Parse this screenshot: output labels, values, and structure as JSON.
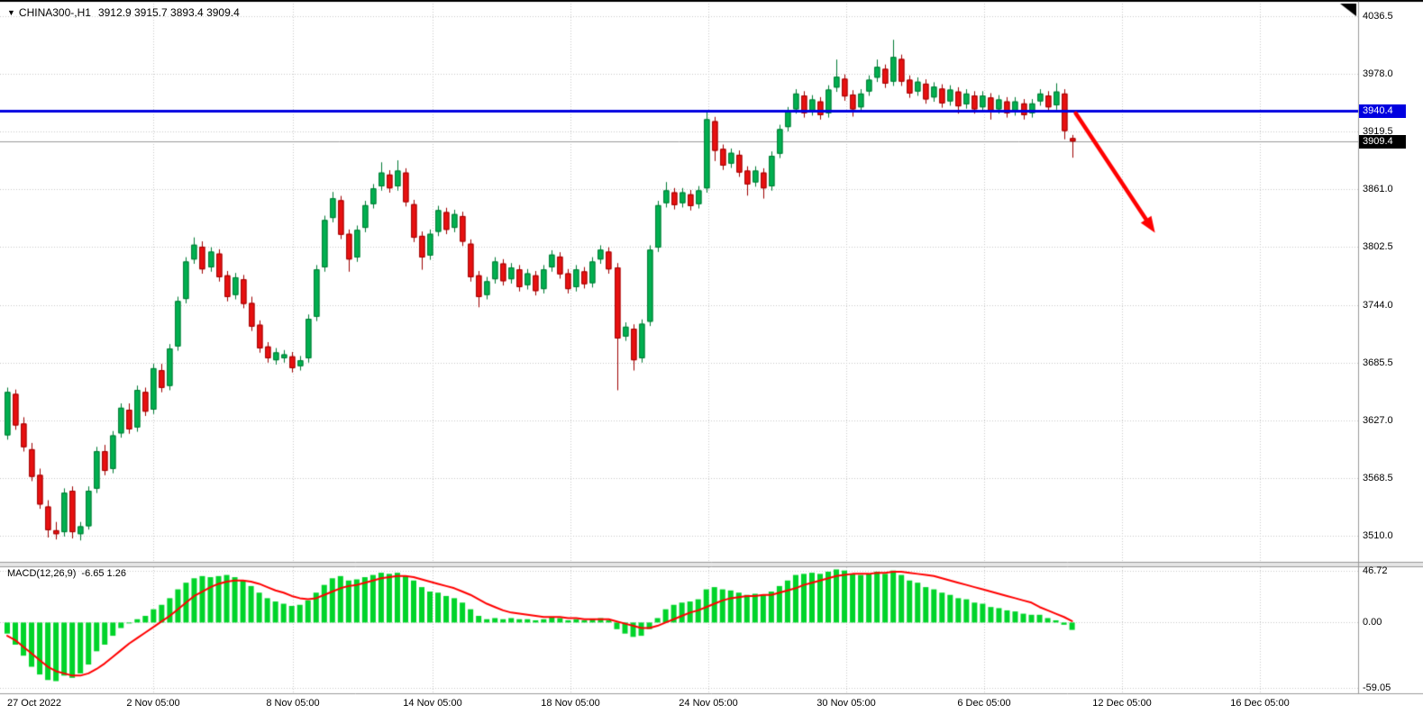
{
  "icons": {
    "collapse": "▼"
  },
  "colors": {
    "up": "#00B050",
    "up_stroke": "#007A33",
    "down": "#E81010",
    "down_stroke": "#9E0000",
    "hist": "#00D42A",
    "signal": "#FF0000",
    "blue_line": "#0000E0",
    "grid": "#C9C9C9",
    "last_price_line": "#9A9A9A",
    "badge_blue_bg": "#0000E0",
    "badge_black_bg": "#000000",
    "arrow": "#FF0000"
  },
  "chart_data": [
    {
      "type": "candlestick",
      "title": "CHINA300-,H1",
      "ohlc_text": "3912.9 3915.7 3893.4 3909.4",
      "ohlc_readout": {
        "open": 3912.9,
        "high": 3915.7,
        "low": 3893.4,
        "close": 3909.4
      },
      "ylim": [
        3484,
        4049
      ],
      "grid": "dotted",
      "price_gridlines": [
        4036.5,
        3978.0,
        3919.5,
        3861.0,
        3802.5,
        3744.0,
        3685.5,
        3627.0,
        3568.5,
        3510.0
      ],
      "price_tick_labels": [
        "4036.5",
        "3978.0",
        "3919.5",
        "3861.0",
        "3802.5",
        "3744.0",
        "3685.5",
        "3627.0",
        "3568.5",
        "3510.0"
      ],
      "time_tick_labels": [
        "27 Oct 2022",
        "2 Nov 05:00",
        "8 Nov 05:00",
        "14 Nov 05:00",
        "18 Nov 05:00",
        "24 Nov 05:00",
        "30 Nov 05:00",
        "6 Dec 05:00",
        "12 Dec 05:00",
        "16 Dec 05:00"
      ],
      "resistance_line": 3940.4,
      "resistance_label": "3940.4",
      "last_price": 3909.4,
      "last_price_label": "3909.4",
      "arrow": {
        "from_price": 3938,
        "to_price": 3817,
        "color": "#FF0000"
      },
      "candles": [
        [
          3612,
          3660,
          3608,
          3656
        ],
        [
          3654,
          3658,
          3618,
          3622
        ],
        [
          3624,
          3630,
          3596,
          3600
        ],
        [
          3598,
          3604,
          3566,
          3570
        ],
        [
          3572,
          3578,
          3538,
          3542
        ],
        [
          3540,
          3546,
          3509,
          3516
        ],
        [
          3516,
          3524,
          3507,
          3512
        ],
        [
          3514,
          3558,
          3510,
          3554
        ],
        [
          3556,
          3560,
          3508,
          3514
        ],
        [
          3512,
          3524,
          3506,
          3520
        ],
        [
          3520,
          3560,
          3517,
          3556
        ],
        [
          3558,
          3600,
          3554,
          3596
        ],
        [
          3596,
          3602,
          3572,
          3576
        ],
        [
          3578,
          3616,
          3574,
          3612
        ],
        [
          3614,
          3644,
          3610,
          3640
        ],
        [
          3638,
          3644,
          3614,
          3618
        ],
        [
          3620,
          3662,
          3616,
          3658
        ],
        [
          3656,
          3660,
          3632,
          3636
        ],
        [
          3638,
          3684,
          3634,
          3680
        ],
        [
          3678,
          3684,
          3656,
          3660
        ],
        [
          3662,
          3704,
          3658,
          3700
        ],
        [
          3702,
          3752,
          3698,
          3748
        ],
        [
          3750,
          3792,
          3746,
          3788
        ],
        [
          3790,
          3812,
          3786,
          3805
        ],
        [
          3803,
          3808,
          3776,
          3780
        ],
        [
          3782,
          3802,
          3778,
          3798
        ],
        [
          3796,
          3800,
          3768,
          3772
        ],
        [
          3774,
          3778,
          3748,
          3752
        ],
        [
          3754,
          3776,
          3750,
          3772
        ],
        [
          3770,
          3774,
          3741,
          3745
        ],
        [
          3746,
          3752,
          3718,
          3722
        ],
        [
          3724,
          3728,
          3696,
          3700
        ],
        [
          3702,
          3706,
          3686,
          3690
        ],
        [
          3688,
          3700,
          3684,
          3696
        ],
        [
          3690,
          3698,
          3686,
          3694
        ],
        [
          3692,
          3696,
          3676,
          3680
        ],
        [
          3682,
          3692,
          3678,
          3688
        ],
        [
          3690,
          3734,
          3686,
          3730
        ],
        [
          3732,
          3784,
          3728,
          3780
        ],
        [
          3782,
          3834,
          3778,
          3830
        ],
        [
          3832,
          3858,
          3828,
          3852
        ],
        [
          3850,
          3854,
          3811,
          3815
        ],
        [
          3816,
          3820,
          3778,
          3790
        ],
        [
          3792,
          3824,
          3788,
          3820
        ],
        [
          3822,
          3849,
          3818,
          3845
        ],
        [
          3846,
          3866,
          3842,
          3862
        ],
        [
          3864,
          3888,
          3860,
          3878
        ],
        [
          3876,
          3880,
          3858,
          3862
        ],
        [
          3864,
          3890,
          3860,
          3880
        ],
        [
          3878,
          3882,
          3844,
          3848
        ],
        [
          3846,
          3850,
          3808,
          3812
        ],
        [
          3814,
          3818,
          3780,
          3792
        ],
        [
          3794,
          3820,
          3790,
          3816
        ],
        [
          3818,
          3844,
          3814,
          3840
        ],
        [
          3838,
          3842,
          3816,
          3820
        ],
        [
          3822,
          3840,
          3818,
          3836
        ],
        [
          3834,
          3838,
          3804,
          3808
        ],
        [
          3806,
          3810,
          3768,
          3772
        ],
        [
          3774,
          3778,
          3742,
          3752
        ],
        [
          3754,
          3772,
          3750,
          3768
        ],
        [
          3770,
          3792,
          3766,
          3788
        ],
        [
          3786,
          3790,
          3764,
          3768
        ],
        [
          3770,
          3786,
          3766,
          3782
        ],
        [
          3780,
          3784,
          3758,
          3762
        ],
        [
          3764,
          3780,
          3760,
          3776
        ],
        [
          3774,
          3778,
          3754,
          3758
        ],
        [
          3760,
          3784,
          3756,
          3780
        ],
        [
          3782,
          3799,
          3778,
          3795
        ],
        [
          3793,
          3797,
          3771,
          3775
        ],
        [
          3776,
          3780,
          3756,
          3760
        ],
        [
          3762,
          3784,
          3758,
          3780
        ],
        [
          3778,
          3782,
          3761,
          3765
        ],
        [
          3766,
          3792,
          3762,
          3788
        ],
        [
          3790,
          3804,
          3786,
          3800
        ],
        [
          3798,
          3802,
          3776,
          3780
        ],
        [
          3782,
          3786,
          3658,
          3710
        ],
        [
          3712,
          3726,
          3708,
          3722
        ],
        [
          3720,
          3724,
          3678,
          3688
        ],
        [
          3690,
          3729,
          3686,
          3725
        ],
        [
          3727,
          3804,
          3723,
          3800
        ],
        [
          3802,
          3849,
          3798,
          3845
        ],
        [
          3847,
          3868,
          3843,
          3860
        ],
        [
          3858,
          3862,
          3841,
          3845
        ],
        [
          3847,
          3862,
          3843,
          3858
        ],
        [
          3856,
          3860,
          3840,
          3844
        ],
        [
          3846,
          3864,
          3842,
          3860
        ],
        [
          3862,
          3940,
          3858,
          3932
        ],
        [
          3930,
          3934,
          3890,
          3900
        ],
        [
          3902,
          3906,
          3881,
          3885
        ],
        [
          3887,
          3902,
          3883,
          3898
        ],
        [
          3896,
          3900,
          3874,
          3878
        ],
        [
          3880,
          3884,
          3855,
          3866
        ],
        [
          3868,
          3884,
          3864,
          3880
        ],
        [
          3878,
          3882,
          3852,
          3862
        ],
        [
          3864,
          3899,
          3860,
          3895
        ],
        [
          3897,
          3926,
          3893,
          3922
        ],
        [
          3924,
          3944,
          3920,
          3940
        ],
        [
          3942,
          3962,
          3938,
          3958
        ],
        [
          3956,
          3960,
          3934,
          3938
        ],
        [
          3940,
          3956,
          3936,
          3952
        ],
        [
          3950,
          3954,
          3932,
          3936
        ],
        [
          3938,
          3966,
          3934,
          3962
        ],
        [
          3964,
          3992,
          3960,
          3975
        ],
        [
          3973,
          3977,
          3951,
          3955
        ],
        [
          3957,
          3961,
          3935,
          3942
        ],
        [
          3944,
          3962,
          3940,
          3958
        ],
        [
          3960,
          3976,
          3956,
          3972
        ],
        [
          3974,
          3992,
          3970,
          3985
        ],
        [
          3983,
          3987,
          3964,
          3968
        ],
        [
          3970,
          4012,
          3966,
          3995
        ],
        [
          3993,
          3997,
          3966,
          3970
        ],
        [
          3972,
          3976,
          3954,
          3958
        ],
        [
          3960,
          3974,
          3956,
          3970
        ],
        [
          3968,
          3972,
          3948,
          3952
        ],
        [
          3954,
          3969,
          3950,
          3965
        ],
        [
          3963,
          3967,
          3944,
          3948
        ],
        [
          3950,
          3966,
          3946,
          3962
        ],
        [
          3960,
          3964,
          3938,
          3945
        ],
        [
          3947,
          3962,
          3943,
          3958
        ],
        [
          3956,
          3960,
          3938,
          3942
        ],
        [
          3944,
          3960,
          3940,
          3956
        ],
        [
          3954,
          3958,
          3932,
          3940
        ],
        [
          3942,
          3956,
          3938,
          3952
        ],
        [
          3950,
          3954,
          3934,
          3938
        ],
        [
          3940,
          3954,
          3936,
          3950
        ],
        [
          3948,
          3952,
          3932,
          3936
        ],
        [
          3938,
          3952,
          3934,
          3948
        ],
        [
          3950,
          3962,
          3946,
          3958
        ],
        [
          3956,
          3960,
          3940,
          3944
        ],
        [
          3946,
          3968,
          3942,
          3960
        ],
        [
          3958,
          3962,
          3912,
          3920
        ],
        [
          3912.9,
          3915.7,
          3893.4,
          3909.4
        ]
      ]
    },
    {
      "type": "bar",
      "name": "MACD(12,26,9)",
      "label_text": "MACD(12,26,9)",
      "values_text": "-6.65 1.26",
      "macd_readout": -6.65,
      "signal_readout": 1.26,
      "ylim": [
        -64,
        50
      ],
      "gridline_values": [
        46.72,
        0,
        -59.05
      ],
      "value_tick_labels": [
        "46.72",
        "0.00",
        "-59.05"
      ],
      "histogram": [
        -10,
        -20,
        -30,
        -40,
        -47,
        -52,
        -53,
        -48,
        -50,
        -46,
        -38,
        -26,
        -20,
        -12,
        -5,
        0,
        3,
        6,
        12,
        16,
        22,
        30,
        36,
        40,
        42,
        41,
        42,
        43,
        41,
        38,
        33,
        27,
        22,
        19,
        17,
        15,
        16,
        20,
        27,
        34,
        40,
        42,
        38,
        39,
        41,
        43,
        45,
        44,
        45,
        42,
        38,
        32,
        28,
        27,
        24,
        22,
        18,
        12,
        6,
        3,
        4,
        3,
        4,
        3,
        3,
        2,
        3,
        5,
        4,
        2,
        3,
        2,
        3,
        4,
        2,
        -6,
        -10,
        -13,
        -12,
        -6,
        4,
        12,
        16,
        18,
        19,
        21,
        30,
        32,
        30,
        29,
        27,
        25,
        26,
        25,
        28,
        33,
        38,
        43,
        44,
        45,
        44,
        46,
        48,
        47,
        44,
        43,
        44,
        46,
        44,
        47,
        43,
        38,
        36,
        32,
        30,
        27,
        25,
        22,
        21,
        18,
        17,
        14,
        13,
        11,
        10,
        8,
        7,
        7,
        4,
        2,
        -2,
        -6.65
      ],
      "signal": [
        -12,
        -16,
        -22,
        -28,
        -34,
        -40,
        -44,
        -46,
        -48,
        -48,
        -46,
        -42,
        -37,
        -31,
        -25,
        -19,
        -14,
        -9,
        -4,
        1,
        6,
        12,
        18,
        24,
        28,
        32,
        35,
        37,
        38,
        38,
        37,
        35,
        32,
        29,
        27,
        24,
        22,
        21,
        22,
        25,
        28,
        31,
        33,
        34,
        36,
        38,
        40,
        41,
        42,
        42,
        41,
        39,
        37,
        35,
        33,
        31,
        28,
        25,
        21,
        17,
        14,
        11,
        9,
        8,
        7,
        6,
        5,
        5,
        5,
        4,
        4,
        3,
        3,
        3,
        3,
        1,
        -1,
        -3,
        -5,
        -5,
        -3,
        0,
        3,
        6,
        9,
        11,
        14,
        17,
        20,
        22,
        23,
        24,
        24,
        25,
        25,
        27,
        29,
        31,
        34,
        36,
        38,
        40,
        42,
        43,
        44,
        44,
        44,
        45,
        45,
        46,
        46,
        45,
        44,
        43,
        42,
        40,
        38,
        36,
        34,
        32,
        30,
        28,
        26,
        24,
        22,
        20,
        18,
        14,
        11,
        8,
        5,
        1.26
      ]
    }
  ]
}
